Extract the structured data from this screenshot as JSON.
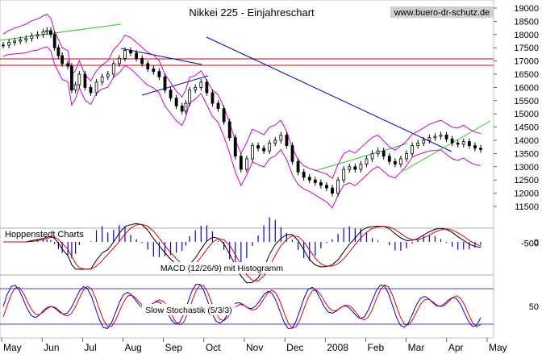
{
  "chart_data": {
    "type": "candlestick-with-indicators",
    "title": "Nikkei 225 - Einjahreschart",
    "watermark": "www.buero-dr-schutz.de",
    "source_label": "Hoppenstedt Charts",
    "x_months": [
      "May",
      "Jun",
      "Jul",
      "Aug",
      "Sep",
      "Oct",
      "Nov",
      "Dec",
      "2008",
      "Feb",
      "Mar",
      "Apr",
      "May"
    ],
    "price_axis": {
      "ylim": [
        11500,
        19000
      ],
      "ticks": [
        11500,
        12000,
        12500,
        13000,
        13500,
        14000,
        14500,
        15000,
        15500,
        16000,
        16500,
        17000,
        17500,
        18000,
        18500,
        19000
      ]
    },
    "price_series": {
      "name": "Nikkei 225",
      "x": [
        0,
        3,
        6,
        9,
        12,
        15,
        18,
        21,
        23,
        25,
        27,
        29,
        31,
        34,
        36,
        38,
        40,
        43,
        46,
        49,
        52,
        55,
        58,
        61,
        64,
        67,
        70,
        73,
        76,
        79,
        82,
        85,
        88,
        91,
        94,
        96,
        98,
        101,
        104,
        107,
        110,
        113,
        116,
        119,
        122,
        125,
        128,
        131,
        134,
        137,
        140,
        143,
        146,
        149,
        152,
        155,
        158,
        161,
        164,
        167,
        170,
        173,
        176,
        179,
        182,
        185,
        188,
        191,
        194,
        197,
        200,
        203,
        206,
        209,
        212,
        215,
        218,
        221,
        224,
        227,
        230,
        233,
        236,
        239,
        242,
        245,
        248,
        251
      ],
      "close": [
        17600,
        17700,
        17750,
        17800,
        17850,
        17950,
        18000,
        18100,
        18150,
        18000,
        17500,
        17200,
        16900,
        16800,
        15900,
        16100,
        16500,
        16000,
        15800,
        16200,
        16400,
        16500,
        16900,
        17100,
        17400,
        17300,
        17100,
        16900,
        16700,
        16600,
        16400,
        15900,
        15600,
        15300,
        15100,
        15400,
        15900,
        16000,
        16200,
        15800,
        15400,
        15200,
        14700,
        14100,
        13400,
        12900,
        13300,
        13800,
        13700,
        13600,
        13900,
        14000,
        14200,
        13800,
        13200,
        12800,
        12600,
        12500,
        12400,
        12300,
        12200,
        12000,
        12500,
        12900,
        13000,
        12900,
        13100,
        13300,
        13500,
        13600,
        13400,
        13200,
        13100,
        13300,
        13500,
        13800,
        13900,
        14000,
        14100,
        14150,
        14200,
        14050,
        13900,
        13850,
        13950,
        13800,
        13700,
        13650
      ]
    },
    "macd_axis": {
      "ticks": [
        0,
        -500
      ],
      "label": "MACD (12/26/9) mit Histogramm"
    },
    "stochastic_axis": {
      "ticks": [
        50
      ],
      "label": "Slow Stochastik (5/3/3)",
      "bands": [
        80,
        20
      ]
    },
    "colors": {
      "price": "#000000",
      "bollinger": "#cc00cc",
      "trend_blue": "#0000cc",
      "trend_green": "#22cc22",
      "resistance": "#cc0000",
      "macd_line": "#000000",
      "signal_line": "#dd0000",
      "histogram": "#0000cc",
      "stoch_k": "#0000cc",
      "stoch_d": "#dd0000"
    }
  }
}
